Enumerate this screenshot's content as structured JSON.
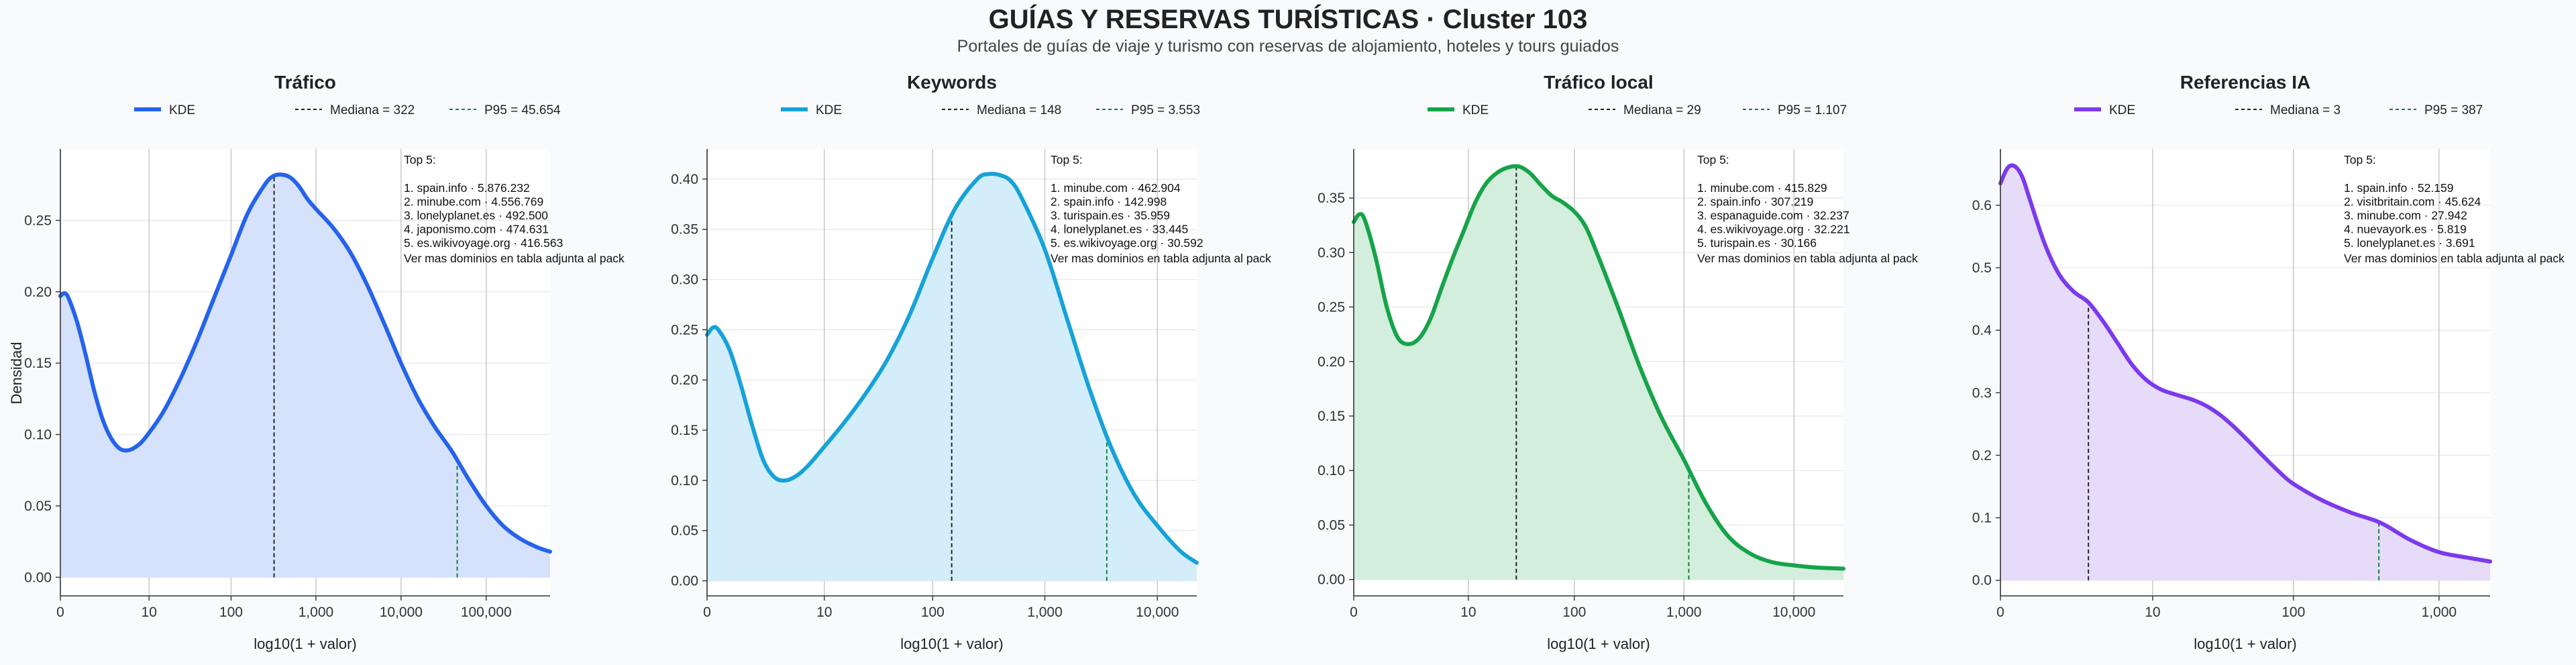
{
  "header": {
    "title": "GUÍAS Y RESERVAS TURÍSTICAS · Cluster 103",
    "subtitle": "Portales de guías de viaje y turismo con reservas de alojamiento, hoteles y tours guiados"
  },
  "ylabel": "Densidad",
  "xlabel": "log10(1 + valor)",
  "chart_data": [
    {
      "type": "area",
      "title": "Tráfico",
      "color": "#2563eb",
      "fill": "#d6e2fb",
      "x_scale": "log10(1+x)",
      "xlim": [
        0,
        5.75
      ],
      "ylim": [
        -0.013,
        0.3
      ],
      "yticks": [
        0,
        0.05,
        0.1,
        0.15,
        0.2,
        0.25
      ],
      "ytick_labels": [
        "0.00",
        "0.05",
        "0.10",
        "0.15",
        "0.20",
        "0.25"
      ],
      "xticks": [
        0,
        1.0414,
        2.0043,
        3.0004,
        4.0,
        5.0
      ],
      "xtick_labels": [
        "0",
        "10",
        "100",
        "1,000",
        "10,000",
        "100,000"
      ],
      "legend": {
        "kde": "KDE",
        "median": "Mediana = 322",
        "p95": "P95 = 45.654"
      },
      "median": 2.509,
      "p95": 4.6595,
      "kde": [
        [
          0,
          0.197
        ],
        [
          0.05,
          0.199
        ],
        [
          0.1,
          0.195
        ],
        [
          0.2,
          0.178
        ],
        [
          0.3,
          0.155
        ],
        [
          0.4,
          0.13
        ],
        [
          0.5,
          0.11
        ],
        [
          0.6,
          0.097
        ],
        [
          0.7,
          0.09
        ],
        [
          0.8,
          0.089
        ],
        [
          0.9,
          0.092
        ],
        [
          1.0,
          0.098
        ],
        [
          1.2,
          0.115
        ],
        [
          1.4,
          0.138
        ],
        [
          1.6,
          0.165
        ],
        [
          1.8,
          0.195
        ],
        [
          2.0,
          0.225
        ],
        [
          2.2,
          0.255
        ],
        [
          2.4,
          0.275
        ],
        [
          2.5,
          0.281
        ],
        [
          2.6,
          0.282
        ],
        [
          2.7,
          0.28
        ],
        [
          2.8,
          0.274
        ],
        [
          2.9,
          0.265
        ],
        [
          3.0,
          0.258
        ],
        [
          3.2,
          0.245
        ],
        [
          3.4,
          0.228
        ],
        [
          3.6,
          0.205
        ],
        [
          3.8,
          0.178
        ],
        [
          4.0,
          0.15
        ],
        [
          4.2,
          0.125
        ],
        [
          4.4,
          0.105
        ],
        [
          4.6,
          0.088
        ],
        [
          4.8,
          0.068
        ],
        [
          5.0,
          0.05
        ],
        [
          5.2,
          0.036
        ],
        [
          5.4,
          0.027
        ],
        [
          5.6,
          0.021
        ],
        [
          5.75,
          0.018
        ]
      ],
      "top5": {
        "header": "Top 5:",
        "items": [
          "1. spain.info · 5.876.232",
          "2. minube.com · 4.556.769",
          "3. lonelyplanet.es · 492.500",
          "4. japonismo.com · 474.631",
          "5. es.wikivoyage.org · 416.563"
        ],
        "footer": "Ver mas dominios en tabla adjunta al pack"
      }
    },
    {
      "type": "area",
      "title": "Keywords",
      "color": "#17a2d8",
      "fill": "#d3eefa",
      "x_scale": "log10(1+x)",
      "xlim": [
        0,
        4.35
      ],
      "ylim": [
        -0.015,
        0.43
      ],
      "yticks": [
        0,
        0.05,
        0.1,
        0.15,
        0.2,
        0.25,
        0.3,
        0.35,
        0.4
      ],
      "ytick_labels": [
        "0.00",
        "0.05",
        "0.10",
        "0.15",
        "0.20",
        "0.25",
        "0.30",
        "0.35",
        "0.40"
      ],
      "xticks": [
        0,
        1.0414,
        2.0043,
        3.0004,
        4.0
      ],
      "xtick_labels": [
        "0",
        "10",
        "100",
        "1,000",
        "10,000"
      ],
      "legend": {
        "kde": "KDE",
        "median": "Mediana = 148",
        "p95": "P95 = 3.553"
      },
      "median": 2.173,
      "p95": 3.5507,
      "kde": [
        [
          0,
          0.245
        ],
        [
          0.05,
          0.252
        ],
        [
          0.1,
          0.25
        ],
        [
          0.2,
          0.23
        ],
        [
          0.3,
          0.195
        ],
        [
          0.4,
          0.155
        ],
        [
          0.5,
          0.12
        ],
        [
          0.6,
          0.103
        ],
        [
          0.7,
          0.1
        ],
        [
          0.8,
          0.105
        ],
        [
          0.9,
          0.115
        ],
        [
          1.0,
          0.128
        ],
        [
          1.2,
          0.155
        ],
        [
          1.4,
          0.185
        ],
        [
          1.6,
          0.22
        ],
        [
          1.8,
          0.265
        ],
        [
          2.0,
          0.32
        ],
        [
          2.2,
          0.37
        ],
        [
          2.4,
          0.4
        ],
        [
          2.5,
          0.405
        ],
        [
          2.6,
          0.404
        ],
        [
          2.7,
          0.398
        ],
        [
          2.8,
          0.38
        ],
        [
          3.0,
          0.33
        ],
        [
          3.2,
          0.26
        ],
        [
          3.4,
          0.19
        ],
        [
          3.6,
          0.13
        ],
        [
          3.8,
          0.085
        ],
        [
          4.0,
          0.055
        ],
        [
          4.2,
          0.03
        ],
        [
          4.35,
          0.018
        ]
      ],
      "top5": {
        "header": "Top 5:",
        "items": [
          "1. minube.com · 462.904",
          "2. spain.info · 142.998",
          "3. turispain.es · 35.959",
          "4. lonelyplanet.es · 33.445",
          "5. es.wikivoyage.org · 30.592"
        ],
        "footer": "Ver mas dominios en tabla adjunta al pack"
      }
    },
    {
      "type": "area",
      "title": "Tráfico local",
      "color": "#16a34a",
      "fill": "#d3eedc",
      "x_scale": "log10(1+x)",
      "xlim": [
        0,
        4.45
      ],
      "ylim": [
        -0.015,
        0.395
      ],
      "yticks": [
        0,
        0.05,
        0.1,
        0.15,
        0.2,
        0.25,
        0.3,
        0.35
      ],
      "ytick_labels": [
        "0.00",
        "0.05",
        "0.10",
        "0.15",
        "0.20",
        "0.25",
        "0.30",
        "0.35"
      ],
      "xticks": [
        0,
        1.0414,
        2.0043,
        3.0004,
        4.0
      ],
      "xtick_labels": [
        "0",
        "10",
        "100",
        "1,000",
        "10,000"
      ],
      "legend": {
        "kde": "KDE",
        "median": "Mediana = 29",
        "p95": "P95 = 1.107"
      },
      "median": 1.4771,
      "p95": 3.0445,
      "kde": [
        [
          0,
          0.328
        ],
        [
          0.05,
          0.335
        ],
        [
          0.1,
          0.33
        ],
        [
          0.2,
          0.295
        ],
        [
          0.3,
          0.25
        ],
        [
          0.4,
          0.222
        ],
        [
          0.5,
          0.216
        ],
        [
          0.6,
          0.222
        ],
        [
          0.7,
          0.24
        ],
        [
          0.8,
          0.268
        ],
        [
          0.9,
          0.295
        ],
        [
          1.0,
          0.32
        ],
        [
          1.1,
          0.345
        ],
        [
          1.2,
          0.363
        ],
        [
          1.3,
          0.373
        ],
        [
          1.4,
          0.378
        ],
        [
          1.5,
          0.379
        ],
        [
          1.6,
          0.373
        ],
        [
          1.7,
          0.362
        ],
        [
          1.8,
          0.352
        ],
        [
          1.9,
          0.346
        ],
        [
          2.0,
          0.338
        ],
        [
          2.1,
          0.325
        ],
        [
          2.2,
          0.302
        ],
        [
          2.4,
          0.25
        ],
        [
          2.6,
          0.195
        ],
        [
          2.8,
          0.148
        ],
        [
          3.0,
          0.11
        ],
        [
          3.2,
          0.07
        ],
        [
          3.4,
          0.04
        ],
        [
          3.6,
          0.024
        ],
        [
          3.8,
          0.016
        ],
        [
          4.0,
          0.013
        ],
        [
          4.2,
          0.011
        ],
        [
          4.45,
          0.01
        ]
      ],
      "top5": {
        "header": "Top 5:",
        "items": [
          "1. minube.com · 415.829",
          "2. spain.info · 307.219",
          "3. espanaguide.com · 32.237",
          "4. es.wikivoyage.org · 32.221",
          "5. turispain.es · 30.166"
        ],
        "footer": "Ver mas dominios en tabla adjunta al pack"
      }
    },
    {
      "type": "area",
      "title": "Referencias IA",
      "color": "#7c3aed",
      "fill": "#e6dcf9",
      "x_scale": "log10(1+x)",
      "xlim": [
        0,
        3.35
      ],
      "ylim": [
        -0.025,
        0.69
      ],
      "yticks": [
        0,
        0.1,
        0.2,
        0.3,
        0.4,
        0.5,
        0.6
      ],
      "ytick_labels": [
        "0.0",
        "0.1",
        "0.2",
        "0.3",
        "0.4",
        "0.5",
        "0.6"
      ],
      "xticks": [
        0,
        1.0414,
        2.0043,
        3.0004
      ],
      "xtick_labels": [
        "0",
        "10",
        "100",
        "1,000"
      ],
      "legend": {
        "kde": "KDE",
        "median": "Mediana = 3",
        "p95": "P95 = 387"
      },
      "median": 0.602,
      "p95": 2.5888,
      "kde": [
        [
          0,
          0.635
        ],
        [
          0.05,
          0.66
        ],
        [
          0.1,
          0.662
        ],
        [
          0.15,
          0.645
        ],
        [
          0.2,
          0.61
        ],
        [
          0.3,
          0.54
        ],
        [
          0.4,
          0.49
        ],
        [
          0.5,
          0.462
        ],
        [
          0.6,
          0.445
        ],
        [
          0.7,
          0.415
        ],
        [
          0.8,
          0.38
        ],
        [
          0.9,
          0.345
        ],
        [
          1.0,
          0.32
        ],
        [
          1.1,
          0.305
        ],
        [
          1.2,
          0.297
        ],
        [
          1.3,
          0.29
        ],
        [
          1.4,
          0.28
        ],
        [
          1.5,
          0.265
        ],
        [
          1.6,
          0.245
        ],
        [
          1.7,
          0.222
        ],
        [
          1.8,
          0.198
        ],
        [
          1.9,
          0.175
        ],
        [
          2.0,
          0.155
        ],
        [
          2.2,
          0.128
        ],
        [
          2.4,
          0.108
        ],
        [
          2.6,
          0.092
        ],
        [
          2.8,
          0.065
        ],
        [
          3.0,
          0.045
        ],
        [
          3.2,
          0.036
        ],
        [
          3.35,
          0.03
        ]
      ],
      "top5": {
        "header": "Top 5:",
        "items": [
          "1. spain.info · 52.159",
          "2. visitbritain.com · 45.624",
          "3. minube.com · 27.942",
          "4. nuevayork.es · 5.819",
          "5. lonelyplanet.es · 3.691"
        ],
        "footer": "Ver mas dominios en tabla adjunta al pack"
      }
    }
  ]
}
